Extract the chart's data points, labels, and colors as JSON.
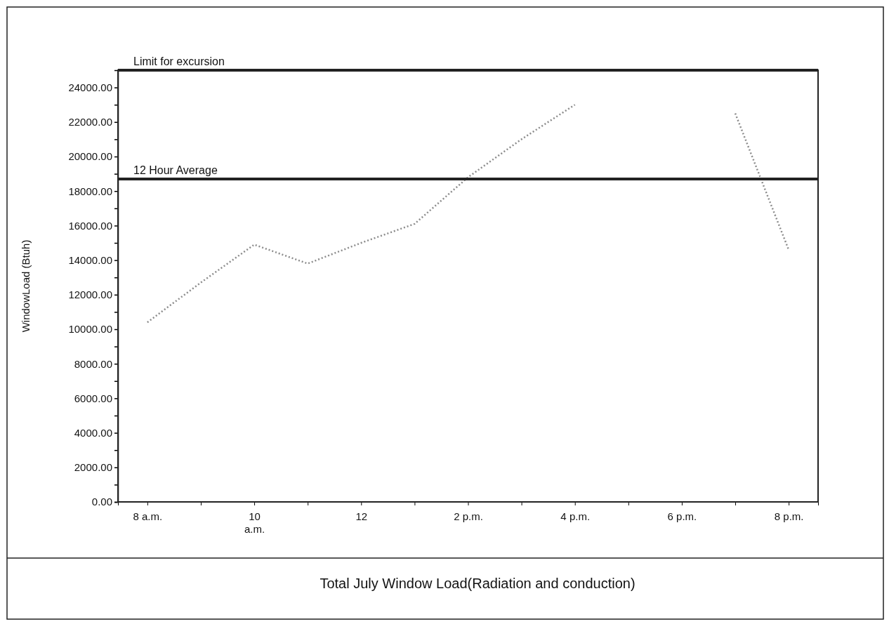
{
  "chart_data": {
    "type": "line",
    "xlabel": "Total July Window Load(Radiation and conduction)",
    "ylabel": "WindowLoad (Btuh)",
    "categories": [
      "8 a.m.",
      null,
      "10 a.m.",
      null,
      "12",
      null,
      "2 p.m.",
      null,
      "4 p.m.",
      null,
      "6 p.m.",
      null,
      "8 p.m."
    ],
    "series": [
      {
        "color": "#8c8c8c",
        "values": [
          10400,
          12700,
          14900,
          13800,
          15000,
          16100,
          18800,
          21000,
          23000,
          null,
          null,
          22500,
          14600
        ]
      }
    ],
    "line_style": "dotted",
    "ylim": [
      0,
      25000
    ],
    "yticks": [
      {
        "value": 0,
        "label": "0.00"
      },
      {
        "value": 1000,
        "label": null
      },
      {
        "value": 2000,
        "label": "2000.00"
      },
      {
        "value": 3000,
        "label": null
      },
      {
        "value": 4000,
        "label": "4000.00"
      },
      {
        "value": 5000,
        "label": null
      },
      {
        "value": 6000,
        "label": "6000.00"
      },
      {
        "value": 7000,
        "label": null
      },
      {
        "value": 8000,
        "label": "8000.00"
      },
      {
        "value": 9000,
        "label": null
      },
      {
        "value": 10000,
        "label": "10000.00"
      },
      {
        "value": 11000,
        "label": null
      },
      {
        "value": 12000,
        "label": "12000.00"
      },
      {
        "value": 13000,
        "label": null
      },
      {
        "value": 14000,
        "label": "14000.00"
      },
      {
        "value": 15000,
        "label": null
      },
      {
        "value": 16000,
        "label": "16000.00"
      },
      {
        "value": 17000,
        "label": null
      },
      {
        "value": 18000,
        "label": "18000.00"
      },
      {
        "value": 19000,
        "label": null
      },
      {
        "value": 20000,
        "label": "20000.00"
      },
      {
        "value": 21000,
        "label": null
      },
      {
        "value": 22000,
        "label": "22000.00"
      },
      {
        "value": 23000,
        "label": null
      },
      {
        "value": 24000,
        "label": "24000.00"
      }
    ],
    "ref_lines": [
      {
        "axis": "y",
        "value": 25000,
        "label": "Limit for excursion",
        "color": "#222222"
      },
      {
        "axis": "y",
        "value": 18700,
        "label": "12 Hour Average",
        "color": "#222222"
      }
    ]
  }
}
